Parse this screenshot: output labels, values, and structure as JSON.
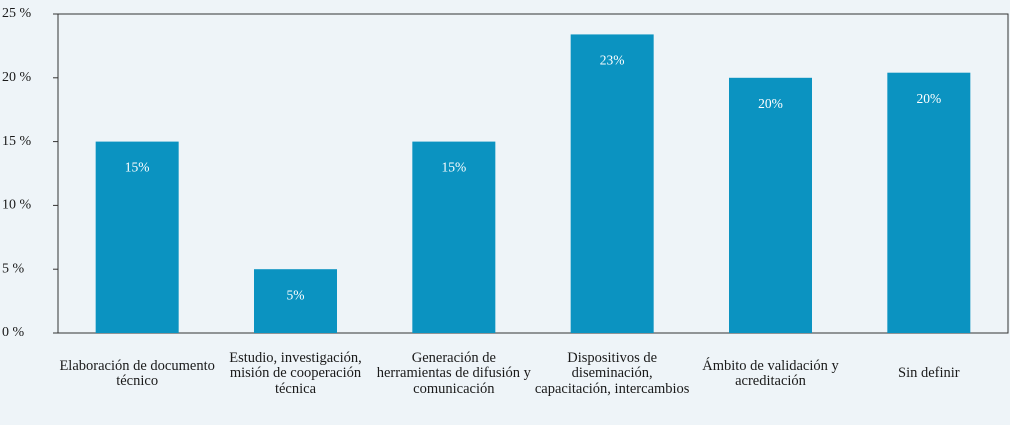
{
  "chart_data": {
    "type": "bar",
    "categories": [
      "Elaboración de documento técnico",
      "Estudio, investigación, misión de cooperación técnica",
      "Generación de herramientas de difusión y comunicación",
      "Dispositivos de diseminación, capacitación, intercambios",
      "Ámbito de validación y acreditación",
      "Sin definir"
    ],
    "values": [
      15,
      5,
      15,
      23.4,
      20,
      20.4
    ],
    "value_labels": [
      "15%",
      "5%",
      "15%",
      "23%",
      "20%",
      "20%"
    ],
    "color": "#0b93c1",
    "ylim": [
      0,
      25
    ],
    "yticks": [
      {
        "value": 0,
        "label": "0 %"
      },
      {
        "value": 5,
        "label": "5 %"
      },
      {
        "value": 10,
        "label": "10 %"
      },
      {
        "value": 15,
        "label": "15 %"
      },
      {
        "value": 20,
        "label": "20 %"
      },
      {
        "value": 25,
        "label": "25 %"
      }
    ]
  }
}
